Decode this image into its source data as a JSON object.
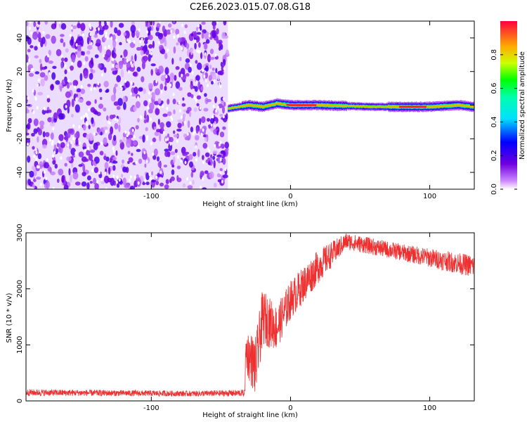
{
  "title": "C2E6.2023.015.07.08.G18",
  "chart_data": [
    {
      "type": "heatmap",
      "xlabel": "Height of straight line (km)",
      "ylabel": "Frequency (Hz)",
      "xlim": [
        -190,
        132
      ],
      "ylim": [
        -50,
        50
      ],
      "xticks": [
        -100,
        0,
        100
      ],
      "yticks": [
        -40,
        -20,
        0,
        20,
        40
      ],
      "noise_region_x": [
        -190,
        -45
      ],
      "signal_line": [
        {
          "x": -45,
          "f": -2
        },
        {
          "x": -30,
          "f": 0
        },
        {
          "x": -20,
          "f": -1
        },
        {
          "x": -10,
          "f": 1
        },
        {
          "x": 0,
          "f": 0
        },
        {
          "x": 20,
          "f": 0
        },
        {
          "x": 60,
          "f": -1
        },
        {
          "x": 100,
          "f": -1
        },
        {
          "x": 120,
          "f": 0
        },
        {
          "x": 132,
          "f": -1
        }
      ],
      "colorbar": {
        "label": "Normalized spectral amplitude",
        "range": [
          0,
          1
        ],
        "ticks": [
          "0.0",
          "0.2",
          "0.4",
          "0.6",
          "0.8"
        ]
      }
    },
    {
      "type": "line",
      "xlabel": "Height of straight line (km)",
      "ylabel": "SNR (10 * v/v)",
      "xlim": [
        -190,
        132
      ],
      "ylim": [
        0,
        3000
      ],
      "xticks": [
        -100,
        0,
        100
      ],
      "yticks": [
        0,
        1000,
        2000,
        3000
      ],
      "color": "#ee3030",
      "envelope": [
        {
          "x": -190,
          "mean": 150,
          "spread": 60
        },
        {
          "x": -130,
          "mean": 140,
          "spread": 55
        },
        {
          "x": -70,
          "mean": 130,
          "spread": 50
        },
        {
          "x": -33,
          "mean": 140,
          "spread": 60
        },
        {
          "x": -32,
          "mean": 900,
          "spread": 400
        },
        {
          "x": -25,
          "mean": 600,
          "spread": 550
        },
        {
          "x": -20,
          "mean": 1500,
          "spread": 500
        },
        {
          "x": -10,
          "mean": 1300,
          "spread": 400
        },
        {
          "x": 0,
          "mean": 1800,
          "spread": 350
        },
        {
          "x": 20,
          "mean": 2400,
          "spread": 300
        },
        {
          "x": 40,
          "mean": 2850,
          "spread": 150
        },
        {
          "x": 80,
          "mean": 2650,
          "spread": 150
        },
        {
          "x": 132,
          "mean": 2400,
          "spread": 200
        }
      ]
    }
  ]
}
